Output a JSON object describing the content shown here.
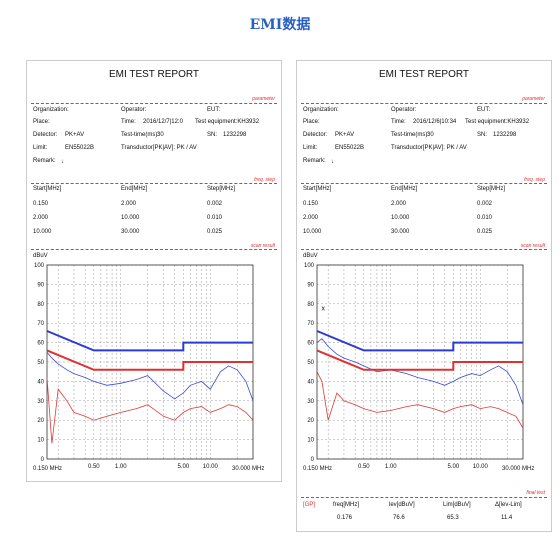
{
  "page_title": "EMI数据",
  "reports": [
    {
      "title": "EMI TEST REPORT",
      "section_parameter": "parameter",
      "section_freq_step": "freq. step",
      "section_scan_result": "scan result",
      "fields": {
        "organization_label": "Organization:",
        "place_label": "Place:",
        "detector_label": "Detector:",
        "detector_value": "PK+AV",
        "limit_label": "Limit:",
        "limit_value": "EN55022B",
        "remark_label": "Remark:",
        "remark_value": "↓",
        "operator_label": "Operator:",
        "time_label": "Time:",
        "time_value": "2016/12/7|12:0",
        "testtime_label": "Test-time(ms):",
        "testtime_value": "30",
        "transducer_label": "Transductor[PK|AV]: PK / AV",
        "eut_label": "EUT:",
        "equipment_label": "Test equipment:KH3932",
        "sn_label": "SN:",
        "sn_value": "1232298"
      },
      "freq_table": {
        "headers": [
          "Start[MHz]",
          "End[MHz]",
          "Step[MHz]"
        ],
        "rows": [
          [
            "0.150",
            "2.000",
            "0.002"
          ],
          [
            "2.000",
            "10.000",
            "0.010"
          ],
          [
            "10.000",
            "30.000",
            "0.025"
          ]
        ]
      },
      "unit": "dBuV",
      "x_start": "0.150 MHz",
      "x_end": "30.000 MHz",
      "x_ticks": [
        "0.50",
        "1.00",
        "5.00",
        "10.00"
      ]
    },
    {
      "title": "EMI TEST REPORT",
      "section_parameter": "parameter",
      "section_freq_step": "freq. step",
      "section_scan_result": "scan result",
      "section_final_test": "final test",
      "fields": {
        "organization_label": "Organization:",
        "place_label": "Place:",
        "detector_label": "Detector:",
        "detector_value": "PK+AV",
        "limit_label": "Limit:",
        "limit_value": "EN55022B",
        "remark_label": "Remark:",
        "remark_value": "↓",
        "operator_label": "Operator:",
        "time_label": "Time:",
        "time_value": "2016/12/6|10:34",
        "testtime_label": "Test-time(ms):",
        "testtime_value": "30",
        "transducer_label": "Transductor[PK|AV]: PK / AV",
        "eut_label": "EUT:",
        "equipment_label": "Test equipment:KH3932",
        "sn_label": "SN:",
        "sn_value": "1232298"
      },
      "freq_table": {
        "headers": [
          "Start[MHz]",
          "End[MHz]",
          "Step[MHz]"
        ],
        "rows": [
          [
            "0.150",
            "2.000",
            "0.002"
          ],
          [
            "2.000",
            "10.000",
            "0.010"
          ],
          [
            "10.000",
            "30.000",
            "0.025"
          ]
        ]
      },
      "unit": "dBuV",
      "x_start": "0.150 MHz",
      "x_end": "30.000 MHz",
      "x_ticks": [
        "0.50",
        "1.00",
        "5.00",
        "10.00"
      ],
      "marker": "x",
      "final_table": {
        "headers": [
          "[GP]",
          "freq[MHz]",
          "lev[dBuV]",
          "Lim[dBuV]",
          "Δ[lev-Lim]"
        ],
        "row": [
          "",
          "0.176",
          "76.6",
          "65.3",
          "11.4"
        ]
      }
    }
  ],
  "chart_data": [
    {
      "type": "line",
      "x_scale": "log",
      "xlim": [
        0.15,
        30
      ],
      "ylim": [
        0,
        100
      ],
      "y_ticks": [
        0,
        10,
        20,
        30,
        40,
        50,
        60,
        70,
        80,
        90,
        100
      ],
      "ylabel": "dBuV",
      "grid": true,
      "limit_lines": [
        {
          "color": "#2b3bd6",
          "points": [
            [
              0.15,
              66
            ],
            [
              0.5,
              56
            ],
            [
              5,
              56
            ],
            [
              5,
              60
            ],
            [
              30,
              60
            ]
          ]
        },
        {
          "color": "#e03030",
          "points": [
            [
              0.15,
              56
            ],
            [
              0.5,
              46
            ],
            [
              5,
              46
            ],
            [
              5,
              50
            ],
            [
              30,
              50
            ]
          ]
        }
      ],
      "series": [
        {
          "color": "#3a4bd8",
          "points": [
            [
              0.15,
              55
            ],
            [
              0.17,
              52
            ],
            [
              0.2,
              49
            ],
            [
              0.25,
              46
            ],
            [
              0.3,
              44
            ],
            [
              0.4,
              42
            ],
            [
              0.5,
              40
            ],
            [
              0.7,
              38
            ],
            [
              1.0,
              39
            ],
            [
              1.5,
              41
            ],
            [
              2.0,
              43
            ],
            [
              3.0,
              35
            ],
            [
              4.0,
              31
            ],
            [
              5.0,
              34
            ],
            [
              6.0,
              38
            ],
            [
              8.0,
              40
            ],
            [
              10.0,
              36
            ],
            [
              13.0,
              45
            ],
            [
              16.0,
              48
            ],
            [
              20.0,
              46
            ],
            [
              25.0,
              40
            ],
            [
              30.0,
              30
            ]
          ]
        },
        {
          "color": "#e03838",
          "points": [
            [
              0.15,
              42
            ],
            [
              0.17,
              8
            ],
            [
              0.2,
              36
            ],
            [
              0.25,
              30
            ],
            [
              0.3,
              24
            ],
            [
              0.4,
              22
            ],
            [
              0.5,
              20
            ],
            [
              0.7,
              22
            ],
            [
              1.0,
              24
            ],
            [
              1.5,
              26
            ],
            [
              2.0,
              28
            ],
            [
              3.0,
              22
            ],
            [
              4.0,
              20
            ],
            [
              5.0,
              24
            ],
            [
              6.0,
              26
            ],
            [
              8.0,
              27
            ],
            [
              10.0,
              24
            ],
            [
              13.0,
              26
            ],
            [
              16.0,
              28
            ],
            [
              20.0,
              27
            ],
            [
              25.0,
              24
            ],
            [
              30.0,
              20
            ]
          ]
        }
      ]
    },
    {
      "type": "line",
      "x_scale": "log",
      "xlim": [
        0.15,
        30
      ],
      "ylim": [
        0,
        100
      ],
      "y_ticks": [
        0,
        10,
        20,
        30,
        40,
        50,
        60,
        70,
        80,
        90,
        100
      ],
      "ylabel": "dBuV",
      "grid": true,
      "limit_lines": [
        {
          "color": "#2b3bd6",
          "points": [
            [
              0.15,
              66
            ],
            [
              0.5,
              56
            ],
            [
              5,
              56
            ],
            [
              5,
              60
            ],
            [
              30,
              60
            ]
          ]
        },
        {
          "color": "#e03030",
          "points": [
            [
              0.15,
              56
            ],
            [
              0.5,
              46
            ],
            [
              5,
              46
            ],
            [
              5,
              50
            ],
            [
              30,
              50
            ]
          ]
        }
      ],
      "marker_point": [
        0.176,
        76.6
      ],
      "series": [
        {
          "color": "#3a4bd8",
          "points": [
            [
              0.15,
              60
            ],
            [
              0.17,
              62
            ],
            [
              0.2,
              58
            ],
            [
              0.25,
              54
            ],
            [
              0.3,
              52
            ],
            [
              0.4,
              50
            ],
            [
              0.5,
              48
            ],
            [
              0.7,
              45
            ],
            [
              1.0,
              46
            ],
            [
              1.5,
              44
            ],
            [
              2.0,
              42
            ],
            [
              3.0,
              40
            ],
            [
              4.0,
              38
            ],
            [
              5.0,
              40
            ],
            [
              6.0,
              42
            ],
            [
              8.0,
              44
            ],
            [
              10.0,
              43
            ],
            [
              13.0,
              46
            ],
            [
              16.0,
              48
            ],
            [
              20.0,
              45
            ],
            [
              25.0,
              38
            ],
            [
              30.0,
              28
            ]
          ]
        },
        {
          "color": "#e03838",
          "points": [
            [
              0.15,
              45
            ],
            [
              0.17,
              40
            ],
            [
              0.2,
              20
            ],
            [
              0.25,
              34
            ],
            [
              0.3,
              30
            ],
            [
              0.4,
              28
            ],
            [
              0.5,
              26
            ],
            [
              0.7,
              24
            ],
            [
              1.0,
              25
            ],
            [
              1.5,
              27
            ],
            [
              2.0,
              28
            ],
            [
              3.0,
              26
            ],
            [
              4.0,
              24
            ],
            [
              5.0,
              26
            ],
            [
              6.0,
              27
            ],
            [
              8.0,
              28
            ],
            [
              10.0,
              26
            ],
            [
              13.0,
              27
            ],
            [
              16.0,
              26
            ],
            [
              20.0,
              24
            ],
            [
              25.0,
              22
            ],
            [
              30.0,
              16
            ]
          ]
        }
      ]
    }
  ]
}
